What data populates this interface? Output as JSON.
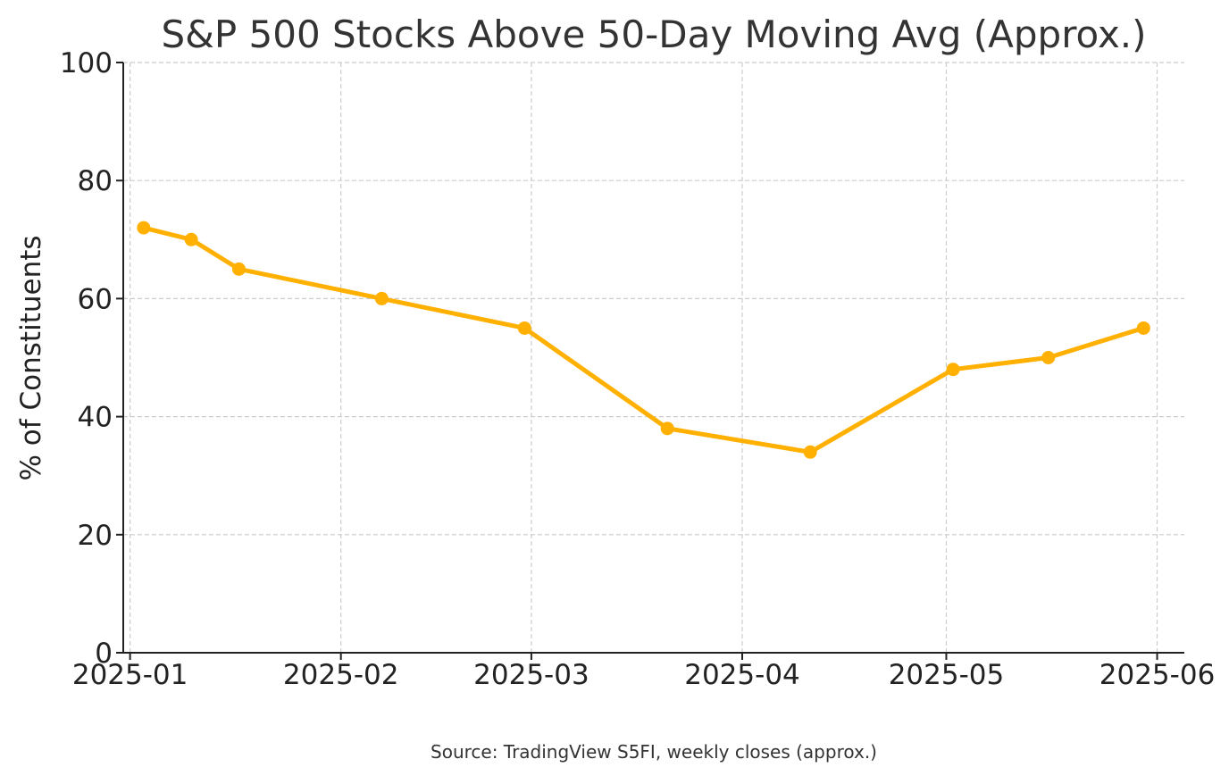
{
  "chart_data": {
    "type": "line",
    "title": "S&P 500 Stocks Above 50-Day Moving Avg (Approx.)",
    "xlabel": "",
    "ylabel": "% of Constituents",
    "source_note": "Source: TradingView S5FI, weekly closes (approx.)",
    "ylim": [
      0,
      100
    ],
    "yticks": [
      0,
      20,
      40,
      60,
      80,
      100
    ],
    "xlim": [
      "2024-12-31",
      "2025-06-05"
    ],
    "xticks": [
      "2025-01-01",
      "2025-02-01",
      "2025-03-01",
      "2025-04-01",
      "2025-05-01",
      "2025-06-01"
    ],
    "xtick_labels": [
      "2025-01",
      "2025-02",
      "2025-03",
      "2025-04",
      "2025-05",
      "2025-06"
    ],
    "grid": true,
    "series": [
      {
        "color": "#FFB000",
        "points": [
          {
            "x": "2025-01-03",
            "y": 72
          },
          {
            "x": "2025-01-10",
            "y": 70
          },
          {
            "x": "2025-01-17",
            "y": 65
          },
          {
            "x": "2025-02-07",
            "y": 60
          },
          {
            "x": "2025-02-28",
            "y": 55
          },
          {
            "x": "2025-03-21",
            "y": 38
          },
          {
            "x": "2025-04-11",
            "y": 34
          },
          {
            "x": "2025-05-02",
            "y": 48
          },
          {
            "x": "2025-05-16",
            "y": 50
          },
          {
            "x": "2025-05-30",
            "y": 55
          }
        ]
      }
    ]
  }
}
